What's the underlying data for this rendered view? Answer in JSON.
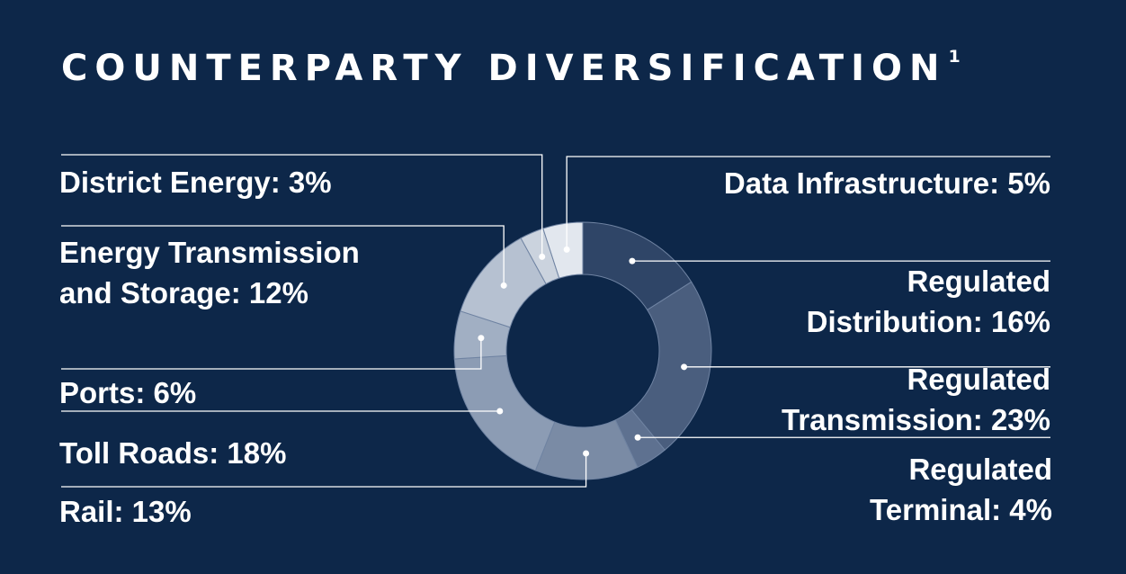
{
  "title": "COUNTERPARTY DIVERSIFICATION",
  "title_footnote": "1",
  "chart_data": {
    "type": "pie",
    "variant": "donut",
    "title": "COUNTERPARTY DIVERSIFICATION",
    "unit": "%",
    "slices": [
      {
        "name": "Regulated Distribution",
        "value": 16,
        "label_lines": [
          "Regulated",
          "Distribution: 16%"
        ],
        "color": "#2f4567"
      },
      {
        "name": "Regulated Transmission",
        "value": 23,
        "label_lines": [
          "Regulated",
          "Transmission: 23%"
        ],
        "color": "#4a5e7e"
      },
      {
        "name": "Regulated Terminal",
        "value": 4,
        "label_lines": [
          "Regulated",
          "Terminal: 4%"
        ],
        "color": "#5e7190"
      },
      {
        "name": "Rail",
        "value": 13,
        "label_lines": [
          "Rail: 13%"
        ],
        "color": "#7a8ba5"
      },
      {
        "name": "Toll Roads",
        "value": 18,
        "label_lines": [
          "Toll Roads: 18%"
        ],
        "color": "#8c9cb4"
      },
      {
        "name": "Ports",
        "value": 6,
        "label_lines": [
          "Ports: 6%"
        ],
        "color": "#a1afc3"
      },
      {
        "name": "Energy Transmission and Storage",
        "value": 12,
        "label_lines": [
          "Energy Transmission",
          "and Storage: 12%"
        ],
        "color": "#b6c1d1"
      },
      {
        "name": "District Energy",
        "value": 3,
        "label_lines": [
          "District Energy: 3%"
        ],
        "color": "#cbd3de"
      },
      {
        "name": "Data Infrastructure",
        "value": 5,
        "label_lines": [
          "Data Infrastructure: 5%"
        ],
        "color": "#e2e7ee"
      }
    ]
  }
}
